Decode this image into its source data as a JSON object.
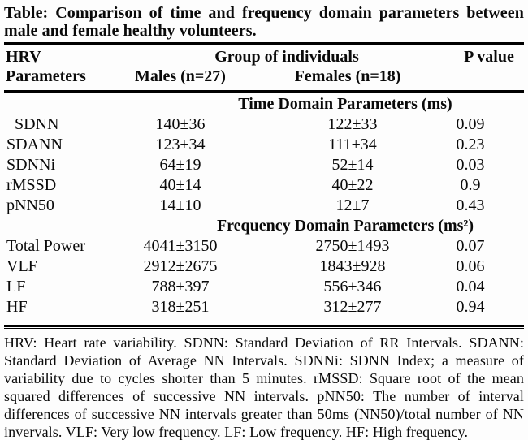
{
  "title": "Table: Comparison of time and frequency domain parameters between male and female healthy volunteers.",
  "table": {
    "col_headers": {
      "param_line1": "HRV",
      "param_line2": "Parameters",
      "group": "Group of individuals",
      "males": "Males (n=27)",
      "females": "Females (n=18)",
      "p_value": "P value"
    },
    "sections": [
      {
        "header": "Time Domain Parameters (ms)",
        "rows": [
          {
            "param": "SDNN",
            "indent": true,
            "males": "140±36",
            "females": "122±33",
            "p": "0.09"
          },
          {
            "param": "SDANN",
            "indent": false,
            "males": "123±34",
            "females": "111±34",
            "p": "0.23"
          },
          {
            "param": "SDNNi",
            "indent": false,
            "males": "64±19",
            "females": "52±14",
            "p": "0.03"
          },
          {
            "param": "rMSSD",
            "indent": false,
            "males": "40±14",
            "females": "40±22",
            "p": "0.9"
          },
          {
            "param": "pNN50",
            "indent": false,
            "males": "14±10",
            "females": "12±7",
            "p": "0.43"
          }
        ]
      },
      {
        "header": "Frequency Domain Parameters (ms²)",
        "rows": [
          {
            "param": "Total Power",
            "indent": false,
            "males": "4041±3150",
            "females": "2750±1493",
            "p": "0.07"
          },
          {
            "param": "VLF",
            "indent": false,
            "males": "2912±2675",
            "females": "1843±928",
            "p": "0.06"
          },
          {
            "param": "LF",
            "indent": false,
            "males": "788±397",
            "females": "556±346",
            "p": "0.04"
          },
          {
            "param": "HF",
            "indent": false,
            "males": "318±251",
            "females": "312±277",
            "p": "0.94"
          }
        ]
      }
    ]
  },
  "footnote": "HRV: Heart rate variability. SDNN: Standard Deviation of RR Intervals. SDANN: Standard Deviation of Average NN Intervals. SDNNi: SDNN Index; a measure of variability due to cycles shorter than 5 minutes. rMSSD: Square root of the mean squared differences of successive NN intervals. pNN50: The number of interval differences of successive NN intervals greater than 50ms (NN50)/total number of NN invervals. VLF: Very low frequency. LF: Low frequency. HF: High frequency."
}
